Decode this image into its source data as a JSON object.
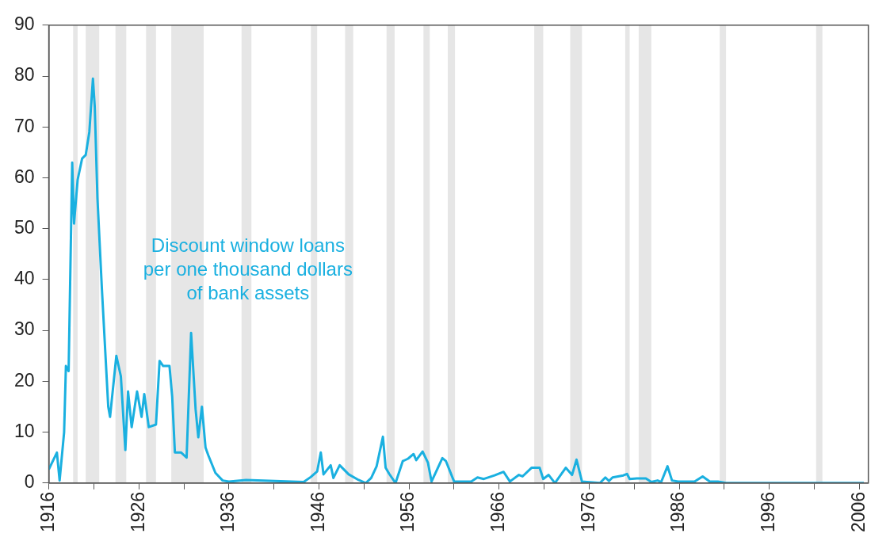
{
  "chart_data": {
    "type": "line",
    "x": [
      1916,
      1916.9,
      1917.2,
      1917.7,
      1917.9,
      1918.2,
      1918.6,
      1918.8,
      1919.2,
      1919.7,
      1920.1,
      1920.5,
      1920.9,
      1921.1,
      1921.4,
      1921.9,
      1922.6,
      1922.8,
      1923.5,
      1924,
      1924.5,
      1924.8,
      1925.2,
      1925.8,
      1926.3,
      1926.6,
      1927.1,
      1927.9,
      1928.3,
      1928.7,
      1929.4,
      1929.7,
      1930,
      1930.7,
      1931.3,
      1931.8,
      1932.3,
      1932.6,
      1933,
      1933.4,
      1933.7,
      1934.5,
      1935.3,
      1936,
      1937.9,
      1944.3,
      1945.1,
      1945.8,
      1946.2,
      1946.5,
      1947.3,
      1947.6,
      1948.3,
      1949.3,
      1950.4,
      1951.2,
      1951.8,
      1952.4,
      1953.1,
      1953.4,
      1953.8,
      1954.5,
      1955.3,
      1955.9,
      1956.5,
      1956.8,
      1957.5,
      1958.1,
      1958.5,
      1959.7,
      1960.1,
      1961,
      1962.9,
      1963.6,
      1964.3,
      1965.5,
      1966.5,
      1967.2,
      1968.2,
      1968.6,
      1969.6,
      1970.5,
      1970.9,
      1971.5,
      1972.2,
      1973.4,
      1974.1,
      1974.6,
      1975.2,
      1977.2,
      1977.8,
      1978.2,
      1978.6,
      1979.8,
      1980.2,
      1980.5,
      1981.3,
      1982.3,
      1982.9,
      1983.6,
      1984,
      1984.7,
      1985.2,
      1985.9,
      1987.7,
      1988.6,
      1989.4,
      1990.3,
      1991.2,
      2006.5
    ],
    "series": [
      {
        "color": "#1ab0e0",
        "values": [
          2.7,
          6,
          0.5,
          10,
          23,
          22,
          63,
          51,
          59.6,
          63.8,
          64.5,
          69,
          79.5,
          74,
          56,
          38,
          15,
          13,
          25,
          21,
          6.5,
          18,
          11,
          18,
          13,
          17.5,
          11,
          11.5,
          24,
          23,
          23,
          17,
          6,
          6,
          5,
          29.5,
          14.5,
          9,
          15,
          7,
          5.5,
          2,
          0.5,
          0.3,
          0.6,
          0.2,
          1.2,
          2.3,
          6,
          1.7,
          3.5,
          1,
          3.5,
          1.7,
          0.6,
          0,
          1,
          3.3,
          9.1,
          3,
          1.8,
          0,
          4.3,
          4.8,
          5.7,
          4.5,
          6.2,
          4,
          0.3,
          4.9,
          4.3,
          0.3,
          0.3,
          1.1,
          0.8,
          1.5,
          2.2,
          0.3,
          1.6,
          1.3,
          3,
          3,
          0.8,
          1.6,
          0,
          3,
          1.6,
          4.6,
          0.3,
          0,
          1.1,
          0.4,
          1.1,
          1.5,
          1.8,
          0.8,
          0.9,
          0.9,
          0.2,
          0.5,
          0.2,
          3.3,
          0.5,
          0.3,
          0.3,
          1.3,
          0.3,
          0.3,
          0,
          0
        ]
      }
    ],
    "xlim": [
      1916,
      2007
    ],
    "xticks": [
      1916,
      {
        "value": 1921,
        "label": null
      },
      1926,
      {
        "value": 1931,
        "label": null
      },
      1936,
      {
        "value": 1941,
        "label": null
      },
      1946,
      {
        "value": 1951,
        "label": null
      },
      1956,
      {
        "value": 1961,
        "label": null
      },
      1966,
      {
        "value": 1971,
        "label": null
      },
      1976,
      {
        "value": 1981,
        "label": null
      },
      1986,
      {
        "value": 1991,
        "label": null
      },
      1996,
      {
        "value": 2001,
        "label": null
      },
      2006
    ],
    "ylim": [
      0,
      90
    ],
    "yticks": [
      0,
      10,
      20,
      30,
      40,
      50,
      60,
      70,
      80,
      90
    ],
    "grid": false,
    "legend": false,
    "marker": "none",
    "line_style": "solid",
    "annotations": [
      "Discount window loans\nper one thousand dollars\nof bank assets"
    ],
    "bands": [
      {
        "axis": "x",
        "from": 1918.7,
        "to": 1919.2,
        "color": "#e6e6e6"
      },
      {
        "axis": "x",
        "from": 1920.1,
        "to": 1921.6,
        "color": "#e6e6e6"
      },
      {
        "axis": "x",
        "from": 1923.4,
        "to": 1924.6,
        "color": "#e6e6e6"
      },
      {
        "axis": "x",
        "from": 1926.8,
        "to": 1927.9,
        "color": "#e6e6e6"
      },
      {
        "axis": "x",
        "from": 1929.6,
        "to": 1933.2,
        "color": "#e6e6e6"
      },
      {
        "axis": "x",
        "from": 1937.4,
        "to": 1938.5,
        "color": "#e6e6e6"
      },
      {
        "axis": "x",
        "from": 1945.1,
        "to": 1945.8,
        "color": "#e6e6e6"
      },
      {
        "axis": "x",
        "from": 1948.9,
        "to": 1949.8,
        "color": "#e6e6e6"
      },
      {
        "axis": "x",
        "from": 1953.5,
        "to": 1954.4,
        "color": "#e6e6e6"
      },
      {
        "axis": "x",
        "from": 1957.6,
        "to": 1958.3,
        "color": "#e6e6e6"
      },
      {
        "axis": "x",
        "from": 1960.3,
        "to": 1961.1,
        "color": "#e6e6e6"
      },
      {
        "axis": "x",
        "from": 1969.9,
        "to": 1970.9,
        "color": "#e6e6e6"
      },
      {
        "axis": "x",
        "from": 1973.9,
        "to": 1975.2,
        "color": "#e6e6e6"
      },
      {
        "axis": "x",
        "from": 1980.0,
        "to": 1980.5,
        "color": "#e6e6e6"
      },
      {
        "axis": "x",
        "from": 1981.5,
        "to": 1982.9,
        "color": "#e6e6e6"
      },
      {
        "axis": "x",
        "from": 1990.5,
        "to": 1991.2,
        "color": "#e6e6e6"
      },
      {
        "axis": "x",
        "from": 2001.2,
        "to": 2001.9,
        "color": "#e6e6e6"
      }
    ]
  }
}
